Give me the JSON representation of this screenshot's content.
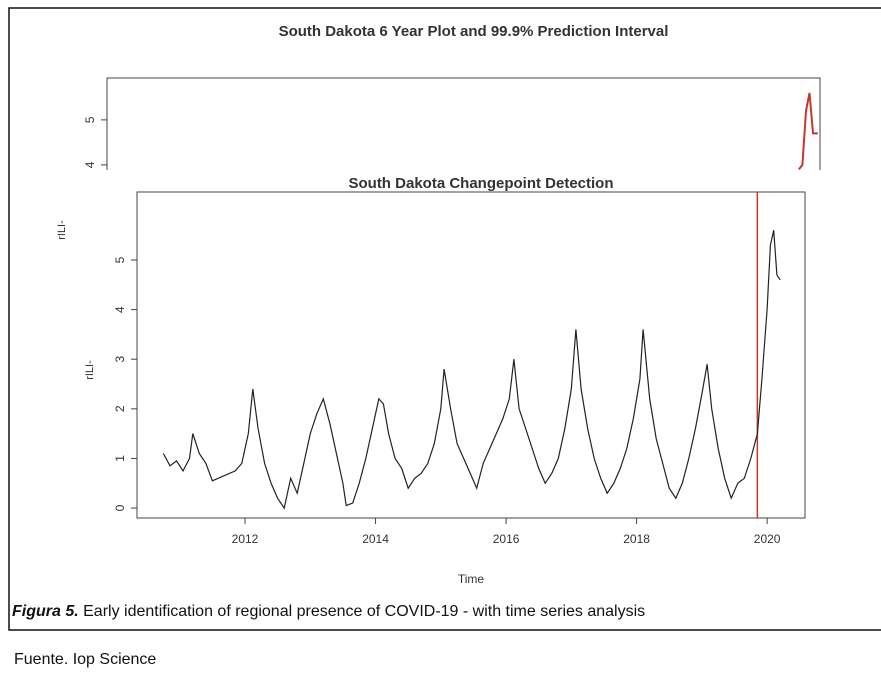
{
  "chart_data": [
    {
      "type": "line",
      "title": "South Dakota 6 Year Plot and 99.9% Prediction Interval",
      "ylabel": "rILI-",
      "x": [
        2019.95,
        2020.0,
        2020.05,
        2020.1,
        2020.15,
        2020.22
      ],
      "series": [
        {
          "color": "#c0392b",
          "values": [
            3.9,
            4.0,
            5.2,
            5.6,
            4.7,
            4.7
          ]
        }
      ],
      "xlim": [
        2010.1,
        2020.25
      ],
      "ylim": [
        0,
        5.93
      ],
      "yticks": [
        4,
        5
      ]
    },
    {
      "type": "line",
      "title": "South Dakota Changepoint Detection",
      "xlabel": "Time",
      "ylabel": "rILI-",
      "x": [
        2010.75,
        2010.85,
        2010.95,
        2011.05,
        2011.15,
        2011.2,
        2011.3,
        2011.4,
        2011.5,
        2011.85,
        2011.95,
        2012.05,
        2012.12,
        2012.2,
        2012.3,
        2012.4,
        2012.5,
        2012.6,
        2012.7,
        2012.8,
        2012.9,
        2013.0,
        2013.1,
        2013.2,
        2013.3,
        2013.4,
        2013.5,
        2013.55,
        2013.65,
        2013.75,
        2013.85,
        2013.95,
        2014.05,
        2014.12,
        2014.2,
        2014.3,
        2014.4,
        2014.5,
        2014.6,
        2014.7,
        2014.8,
        2014.9,
        2015.0,
        2015.05,
        2015.15,
        2015.25,
        2015.35,
        2015.45,
        2015.55,
        2015.65,
        2015.75,
        2015.85,
        2015.95,
        2016.05,
        2016.12,
        2016.2,
        2016.3,
        2016.4,
        2016.5,
        2016.6,
        2016.7,
        2016.8,
        2016.9,
        2017.0,
        2017.07,
        2017.15,
        2017.25,
        2017.35,
        2017.45,
        2017.55,
        2017.65,
        2017.75,
        2017.85,
        2017.95,
        2018.05,
        2018.1,
        2018.2,
        2018.3,
        2018.4,
        2018.5,
        2018.6,
        2018.7,
        2018.8,
        2018.9,
        2019.0,
        2019.08,
        2019.15,
        2019.25,
        2019.35,
        2019.45,
        2019.55,
        2019.65,
        2019.75,
        2019.85,
        2019.92,
        2020.0,
        2020.05,
        2020.1,
        2020.15,
        2020.2
      ],
      "series": [
        {
          "color": "#222222",
          "values": [
            1.1,
            0.85,
            0.95,
            0.75,
            1.0,
            1.5,
            1.1,
            0.9,
            0.55,
            0.75,
            0.9,
            1.5,
            2.4,
            1.6,
            0.9,
            0.5,
            0.2,
            0.0,
            0.6,
            0.3,
            0.9,
            1.5,
            1.9,
            2.2,
            1.7,
            1.1,
            0.5,
            0.05,
            0.1,
            0.5,
            1.0,
            1.6,
            2.2,
            2.1,
            1.5,
            1.0,
            0.8,
            0.4,
            0.6,
            0.7,
            0.9,
            1.3,
            2.0,
            2.8,
            2.0,
            1.3,
            1.0,
            0.7,
            0.4,
            0.9,
            1.2,
            1.5,
            1.8,
            2.2,
            3.0,
            2.0,
            1.6,
            1.2,
            0.8,
            0.5,
            0.7,
            1.0,
            1.6,
            2.4,
            3.6,
            2.4,
            1.6,
            1.0,
            0.6,
            0.3,
            0.5,
            0.8,
            1.2,
            1.8,
            2.6,
            3.6,
            2.2,
            1.4,
            0.9,
            0.4,
            0.2,
            0.5,
            1.0,
            1.6,
            2.3,
            2.9,
            2.0,
            1.2,
            0.6,
            0.2,
            0.5,
            0.6,
            1.0,
            1.5,
            2.6,
            4.0,
            5.3,
            5.6,
            4.7,
            4.6
          ]
        }
      ],
      "changepoint": 2019.85,
      "changepoint_color": "#c0392b",
      "xlim": [
        2010.345,
        2020.58
      ],
      "ylim": [
        -0.2,
        6.37
      ],
      "xticks": [
        2012,
        2014,
        2016,
        2018,
        2020
      ],
      "yticks": [
        0,
        1,
        2,
        3,
        4,
        5
      ]
    }
  ],
  "caption": {
    "label": "Figura 5.",
    "text": " Early identification of regional presence of COVID-19 - with time series analysis",
    "source": "Fuente. Iop Science"
  }
}
